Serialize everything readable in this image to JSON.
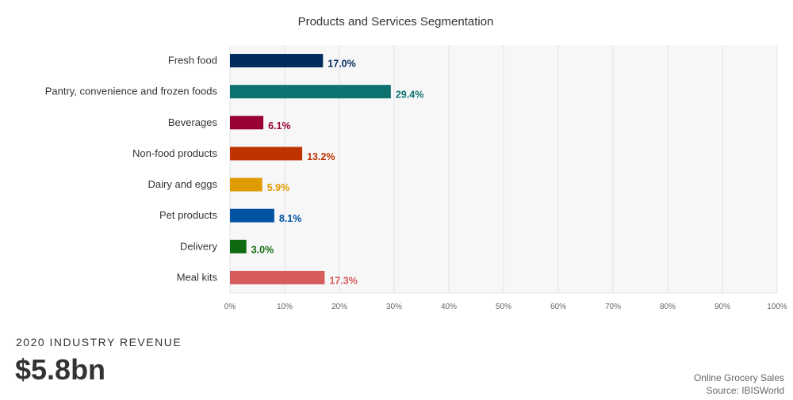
{
  "chart_data": {
    "type": "bar",
    "orientation": "horizontal",
    "title": "Products and Services Segmentation",
    "xlabel": "",
    "ylabel": "",
    "xlim": [
      0,
      100
    ],
    "grid": true,
    "tick_labels": [
      "0%",
      "10%",
      "20%",
      "30%",
      "40%",
      "50%",
      "60%",
      "70%",
      "80%",
      "90%",
      "100%"
    ],
    "categories": [
      "Fresh food",
      "Pantry, convenience and frozen foods",
      "Beverages",
      "Non-food products",
      "Dairy and eggs",
      "Pet products",
      "Delivery",
      "Meal kits"
    ],
    "values": [
      17.0,
      29.4,
      6.1,
      13.2,
      5.9,
      8.1,
      3.0,
      17.3
    ],
    "value_labels": [
      "17.0%",
      "29.4%",
      "6.1%",
      "13.2%",
      "5.9%",
      "8.1%",
      "3.0%",
      "17.3%"
    ],
    "colors": [
      "#002b5c",
      "#0d7270",
      "#990033",
      "#bf3300",
      "#e09b00",
      "#0052a3",
      "#0f6b0f",
      "#d65c5c"
    ]
  },
  "kpi": {
    "label": "2020 INDUSTRY REVENUE",
    "value": "$5.8bn"
  },
  "footer": {
    "industry": "Online Grocery Sales",
    "source": "Source: IBISWorld"
  }
}
